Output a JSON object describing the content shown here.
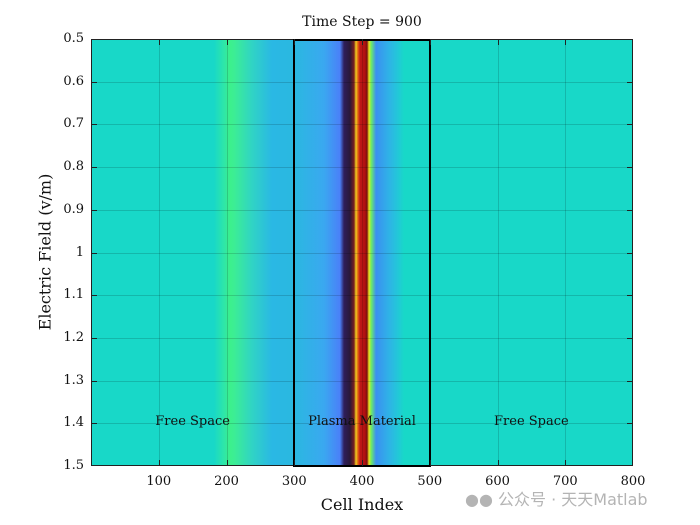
{
  "chart_data": {
    "type": "heatmap",
    "title": "Time Step = 900",
    "xlabel": "Cell Index",
    "ylabel": "Electric Field (v/m)",
    "xlim": [
      0,
      800
    ],
    "ylim": [
      0.5,
      1.5
    ],
    "y_reversed": true,
    "x_ticks": [
      "100",
      "200",
      "300",
      "400",
      "500",
      "600",
      "700",
      "800"
    ],
    "y_ticks": [
      "0.5",
      "0.6",
      "0.7",
      "0.8",
      "0.9",
      "1",
      "1.1",
      "1.2",
      "1.3",
      "1.4",
      "1.5"
    ],
    "grid": true,
    "colormap": "turbo",
    "features": [
      {
        "description": "broad green pulse",
        "center_cell": 200
      },
      {
        "description": "sharp oscillating pulse",
        "center_cell": 395
      }
    ],
    "region": {
      "x": [
        300,
        500
      ]
    },
    "annotations": [
      {
        "text": "Free Space",
        "x": 150
      },
      {
        "text": "Plasma Material",
        "x": 400
      },
      {
        "text": "Free Space",
        "x": 650
      }
    ]
  },
  "watermark": "公众号 · 天天Matlab"
}
